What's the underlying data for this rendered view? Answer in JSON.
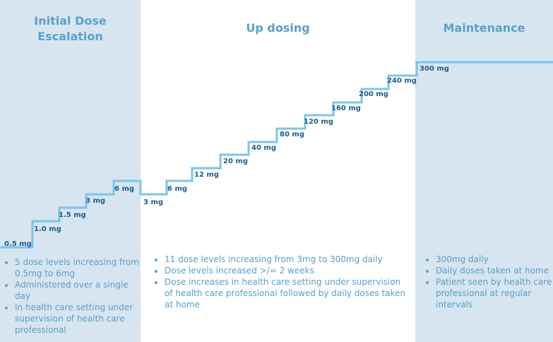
{
  "phases": [
    {
      "title": "Initial Dose\nEscalation",
      "notes": [
        "5 dose levels increasing from 0.5mg to 6mg",
        "Administered over a single day",
        "In health care setting under supervision of health care professional"
      ]
    },
    {
      "title": "Up dosing",
      "notes": [
        "11 dose levels increasing from 3mg to 300mg  daily",
        "Dose levels increased >/= 2 weeks",
        "Dose increases in health care setting under supervision of health care professional followed by daily doses taken at home"
      ]
    },
    {
      "title": "Maintenance",
      "notes": [
        "300mg daily",
        "Daily doses taken at home",
        "Patient seen by health care professional at regular intervals"
      ]
    }
  ],
  "steps": [
    "0.5 mg",
    "1.0 mg",
    "1.5 mg",
    "3 mg",
    "6 mg",
    "3 mg",
    "6 mg",
    "12 mg",
    "20 mg",
    "40 mg",
    "80 mg",
    "120 mg",
    "160 mg",
    "200 mg",
    "240 mg",
    "300 mg"
  ],
  "colors": {
    "phase_bg": "#d6e5ef",
    "step_line": "#7cc4ee",
    "label": "#1f5d8e",
    "accent": "#5aa0cc"
  }
}
